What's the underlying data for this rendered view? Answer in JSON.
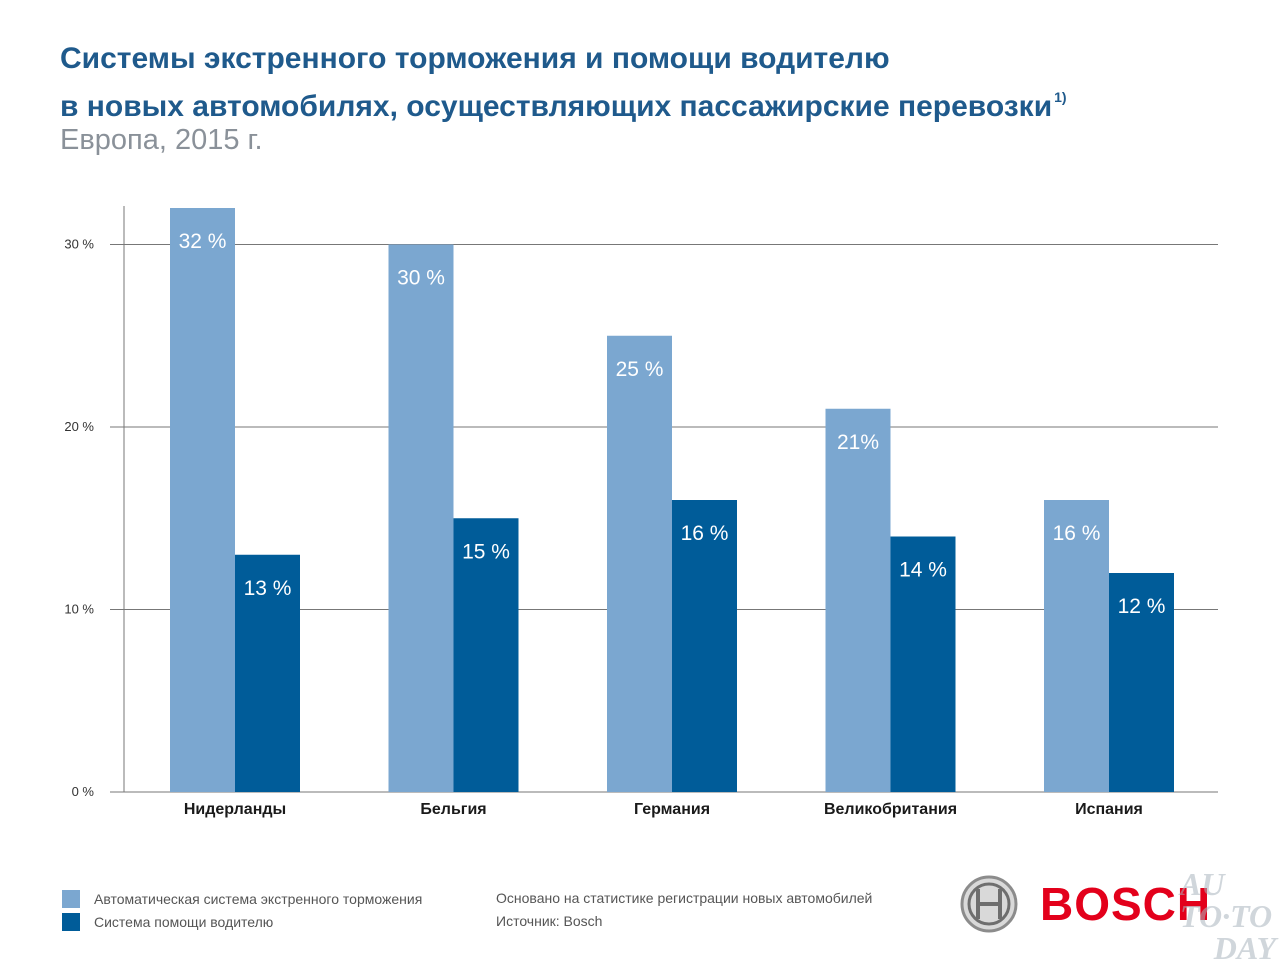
{
  "header": {
    "title_line1": "Системы экстренного торможения и помощи водителю",
    "title_line2": "в новых автомобилях, осуществляющих пассажирские перевозки",
    "footnote_mark": "1)",
    "subtitle": "Европа, 2015 г."
  },
  "colors": {
    "series_aeb": "#7ba7d0",
    "series_assist": "#005c99",
    "title": "#1f5a8c",
    "grid": "#777777",
    "bosch_red": "#e3001b"
  },
  "chart_data": {
    "type": "bar",
    "title": "Системы экстренного торможения и помощи водителю в новых автомобилях, осуществляющих пассажирские перевозки",
    "subtitle": "Европа, 2015 г.",
    "categories": [
      "Нидерланды",
      "Бельгия",
      "Германия",
      "Великобритания",
      "Испания"
    ],
    "series": [
      {
        "name": "Автоматическая система экстренного торможения",
        "values": [
          32,
          30,
          25,
          21,
          16
        ],
        "labels": [
          "32 %",
          "30 %",
          "25 %",
          "21%",
          "16 %"
        ]
      },
      {
        "name": "Система помощи водителю",
        "values": [
          13,
          15,
          16,
          14,
          12
        ],
        "labels": [
          "13 %",
          "15 %",
          "16 %",
          "14 %",
          "12 %"
        ]
      }
    ],
    "yticks": [
      0,
      10,
      20,
      30
    ],
    "ytick_labels": [
      "0 %",
      "10 %",
      "20 %",
      "30 %"
    ],
    "ylim": [
      0,
      32
    ],
    "grid": true,
    "legend_position": "bottom-left"
  },
  "legend": {
    "items": [
      "Автоматическая система экстренного торможения",
      "Система помощи водителю"
    ]
  },
  "notes": {
    "basis": "Основано на статистике регистрации новых автомобилей",
    "source": "Источник: Bosch"
  },
  "brand": {
    "name": "BOSCH",
    "logo_icon": "bosch-armature-logo"
  },
  "watermark": {
    "line1": "AU",
    "line2": "TO·TO",
    "line3": "DAY"
  }
}
